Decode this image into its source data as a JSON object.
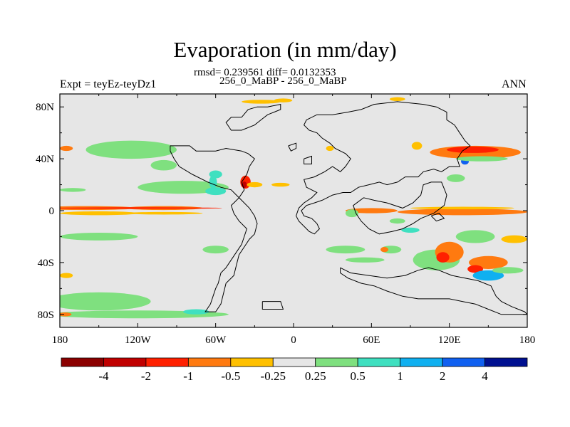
{
  "title": "Evaporation (in mm/day)",
  "stats_line": "rmsd= 0.239561 diff= 0.0132353",
  "case_line": "256_0_MaBP - 256_0_MaBP",
  "left_label": "Expt = teyEz-teyDz1",
  "right_label": "ANN",
  "chart_data": {
    "type": "heatmap",
    "map_projection": "cylindrical-equidistant",
    "background_value_color": "#e6e6e6",
    "xlim": [
      -180,
      180
    ],
    "ylim": [
      -90,
      90
    ],
    "x_ticks": [
      {
        "value": -180,
        "label": "180"
      },
      {
        "value": -120,
        "label": "120W"
      },
      {
        "value": -60,
        "label": "60W"
      },
      {
        "value": 0,
        "label": "0"
      },
      {
        "value": 60,
        "label": "60E"
      },
      {
        "value": 120,
        "label": "120E"
      },
      {
        "value": 180,
        "label": "180"
      }
    ],
    "y_ticks": [
      {
        "value": 80,
        "label": "80N"
      },
      {
        "value": 40,
        "label": "40N"
      },
      {
        "value": 0,
        "label": "0"
      },
      {
        "value": -40,
        "label": "40S"
      },
      {
        "value": -80,
        "label": "80S"
      }
    ],
    "colorbar": {
      "colors": [
        "#8b0000",
        "#c00000",
        "#ff2000",
        "#ff7a10",
        "#ffc000",
        "#e6e6e6",
        "#7fe07f",
        "#3fe0c0",
        "#10b0f0",
        "#1060f0",
        "#001090"
      ],
      "labels": [
        "-4",
        "-2",
        "-1",
        "-0.5",
        "-0.25",
        "0.25",
        "0.5",
        "1",
        "2",
        "4"
      ]
    },
    "coastlines": [
      [
        [
          -40,
          72
        ],
        [
          -35,
          78
        ],
        [
          -28,
          80
        ],
        [
          -20,
          80
        ],
        [
          -10,
          82
        ],
        [
          -10,
          78
        ],
        [
          -20,
          74
        ],
        [
          -25,
          70
        ],
        [
          -30,
          66
        ],
        [
          -40,
          62
        ],
        [
          -48,
          62
        ],
        [
          -52,
          68
        ],
        [
          -48,
          72
        ],
        [
          -40,
          72
        ]
      ],
      [
        [
          -95,
          50
        ],
        [
          -80,
          50
        ],
        [
          -75,
          46
        ],
        [
          -60,
          46
        ],
        [
          -52,
          48
        ],
        [
          -40,
          46
        ],
        [
          -35,
          44
        ],
        [
          -30,
          40
        ],
        [
          -34,
          34
        ],
        [
          -36,
          28
        ],
        [
          -40,
          22
        ],
        [
          -38,
          16
        ],
        [
          -42,
          10
        ],
        [
          -46,
          6
        ],
        [
          -48,
          4
        ],
        [
          -46,
          -2
        ],
        [
          -42,
          -8
        ],
        [
          -36,
          -14
        ],
        [
          -38,
          -20
        ],
        [
          -40,
          -26
        ],
        [
          -44,
          -32
        ],
        [
          -48,
          -38
        ],
        [
          -52,
          -44
        ],
        [
          -56,
          -48
        ],
        [
          -58,
          -56
        ],
        [
          -60,
          -60
        ],
        [
          -62,
          -66
        ],
        [
          -64,
          -72
        ],
        [
          -68,
          -78
        ],
        [
          -60,
          -78
        ],
        [
          -56,
          -72
        ],
        [
          -54,
          -64
        ],
        [
          -52,
          -56
        ],
        [
          -46,
          -50
        ],
        [
          -44,
          -42
        ],
        [
          -42,
          -34
        ],
        [
          -38,
          -28
        ],
        [
          -34,
          -22
        ],
        [
          -30,
          -18
        ],
        [
          -28,
          -10
        ],
        [
          -30,
          -4
        ],
        [
          -34,
          2
        ],
        [
          -40,
          8
        ],
        [
          -44,
          12
        ],
        [
          -48,
          16
        ],
        [
          -56,
          18
        ],
        [
          -66,
          22
        ],
        [
          -78,
          28
        ],
        [
          -88,
          34
        ],
        [
          -92,
          40
        ],
        [
          -95,
          46
        ],
        [
          -95,
          50
        ]
      ],
      [
        [
          -4,
          50
        ],
        [
          2,
          52
        ],
        [
          2,
          48
        ],
        [
          -2,
          46
        ],
        [
          -4,
          50
        ]
      ],
      [
        [
          8,
          40
        ],
        [
          14,
          42
        ],
        [
          14,
          36
        ],
        [
          8,
          36
        ],
        [
          8,
          40
        ]
      ],
      [
        [
          10,
          70
        ],
        [
          18,
          74
        ],
        [
          30,
          74
        ],
        [
          42,
          76
        ],
        [
          52,
          78
        ],
        [
          62,
          82
        ],
        [
          80,
          84
        ],
        [
          100,
          82
        ],
        [
          110,
          80
        ],
        [
          118,
          76
        ],
        [
          118,
          70
        ],
        [
          124,
          66
        ],
        [
          128,
          60
        ],
        [
          132,
          54
        ],
        [
          136,
          50
        ],
        [
          130,
          46
        ],
        [
          126,
          40
        ],
        [
          128,
          34
        ],
        [
          120,
          34
        ],
        [
          114,
          30
        ],
        [
          108,
          32
        ],
        [
          100,
          30
        ],
        [
          96,
          26
        ],
        [
          86,
          26
        ],
        [
          80,
          22
        ],
        [
          72,
          20
        ],
        [
          66,
          22
        ],
        [
          58,
          20
        ],
        [
          50,
          18
        ],
        [
          44,
          14
        ],
        [
          38,
          14
        ],
        [
          30,
          12
        ],
        [
          22,
          8
        ],
        [
          16,
          6
        ],
        [
          10,
          4
        ],
        [
          6,
          0
        ],
        [
          8,
          -4
        ],
        [
          14,
          -6
        ],
        [
          18,
          -10
        ],
        [
          20,
          -14
        ],
        [
          16,
          -18
        ],
        [
          12,
          -16
        ],
        [
          8,
          -12
        ],
        [
          4,
          -8
        ],
        [
          2,
          -4
        ],
        [
          4,
          2
        ],
        [
          8,
          6
        ],
        [
          14,
          10
        ],
        [
          18,
          14
        ],
        [
          14,
          16
        ],
        [
          10,
          18
        ],
        [
          8,
          24
        ],
        [
          16,
          26
        ],
        [
          24,
          30
        ],
        [
          30,
          34
        ],
        [
          36,
          30
        ],
        [
          40,
          34
        ],
        [
          44,
          40
        ],
        [
          40,
          44
        ],
        [
          32,
          48
        ],
        [
          28,
          52
        ],
        [
          22,
          56
        ],
        [
          18,
          60
        ],
        [
          12,
          62
        ],
        [
          8,
          66
        ],
        [
          10,
          70
        ]
      ],
      [
        [
          54,
          10
        ],
        [
          62,
          8
        ],
        [
          72,
          6
        ],
        [
          84,
          2
        ],
        [
          92,
          6
        ],
        [
          98,
          12
        ],
        [
          100,
          20
        ],
        [
          106,
          22
        ],
        [
          114,
          22
        ],
        [
          118,
          12
        ],
        [
          116,
          4
        ],
        [
          108,
          -2
        ],
        [
          98,
          -6
        ],
        [
          92,
          -10
        ],
        [
          84,
          -14
        ],
        [
          76,
          -16
        ],
        [
          66,
          -18
        ],
        [
          58,
          -14
        ],
        [
          52,
          -8
        ],
        [
          48,
          -2
        ],
        [
          46,
          4
        ],
        [
          54,
          10
        ]
      ],
      [
        [
          36,
          -44
        ],
        [
          44,
          -48
        ],
        [
          58,
          -50
        ],
        [
          72,
          -52
        ],
        [
          86,
          -50
        ],
        [
          96,
          -46
        ],
        [
          104,
          -44
        ],
        [
          112,
          -46
        ],
        [
          122,
          -50
        ],
        [
          132,
          -52
        ],
        [
          142,
          -54
        ],
        [
          152,
          -58
        ],
        [
          156,
          -66
        ],
        [
          160,
          -70
        ],
        [
          168,
          -74
        ],
        [
          178,
          -78
        ],
        [
          180,
          -80
        ],
        [
          170,
          -80
        ],
        [
          160,
          -80
        ],
        [
          150,
          -76
        ],
        [
          140,
          -72
        ],
        [
          130,
          -70
        ],
        [
          120,
          -68
        ],
        [
          108,
          -68
        ],
        [
          96,
          -68
        ],
        [
          84,
          -66
        ],
        [
          72,
          -62
        ],
        [
          62,
          -58
        ],
        [
          52,
          -56
        ],
        [
          42,
          -52
        ],
        [
          36,
          -48
        ],
        [
          36,
          -44
        ]
      ],
      [
        [
          -24,
          -70
        ],
        [
          -10,
          -70
        ],
        [
          -8,
          -76
        ],
        [
          -24,
          -76
        ],
        [
          -24,
          -70
        ]
      ],
      [
        [
          106,
          -4
        ],
        [
          110,
          -8
        ],
        [
          116,
          -6
        ],
        [
          112,
          -2
        ],
        [
          106,
          -4
        ]
      ]
    ],
    "anomaly_patches": [
      {
        "lon": -160,
        "lat": 2,
        "w": 80,
        "h": 3,
        "bin": 3
      },
      {
        "lon": -100,
        "lat": 2,
        "w": 60,
        "h": 3,
        "bin": 3
      },
      {
        "lon": -120,
        "lat": 2,
        "w": 130,
        "h": 1.2,
        "bin": 2
      },
      {
        "lon": -150,
        "lat": -2,
        "w": 60,
        "h": 3,
        "bin": 4
      },
      {
        "lon": -100,
        "lat": -2,
        "w": 60,
        "h": 2,
        "bin": 4
      },
      {
        "lon": 60,
        "lat": 0,
        "w": 40,
        "h": 4,
        "bin": 3
      },
      {
        "lon": 130,
        "lat": -1,
        "w": 100,
        "h": 5,
        "bin": 3
      },
      {
        "lon": 130,
        "lat": 2,
        "w": 80,
        "h": 2,
        "bin": 4
      },
      {
        "lon": 140,
        "lat": 45,
        "w": 70,
        "h": 10,
        "bin": 3
      },
      {
        "lon": 138,
        "lat": 47,
        "w": 40,
        "h": 5,
        "bin": 2
      },
      {
        "lon": 132,
        "lat": 38,
        "w": 6,
        "h": 5,
        "bin": 9
      },
      {
        "lon": 145,
        "lat": 40,
        "w": 40,
        "h": 4,
        "bin": 6
      },
      {
        "lon": 110,
        "lat": -38,
        "w": 36,
        "h": 16,
        "bin": 6
      },
      {
        "lon": 120,
        "lat": -32,
        "w": 22,
        "h": 16,
        "bin": 3
      },
      {
        "lon": 115,
        "lat": -36,
        "w": 10,
        "h": 8,
        "bin": 2
      },
      {
        "lon": 150,
        "lat": -40,
        "w": 30,
        "h": 10,
        "bin": 3
      },
      {
        "lon": 140,
        "lat": -45,
        "w": 12,
        "h": 6,
        "bin": 2
      },
      {
        "lon": 150,
        "lat": -50,
        "w": 24,
        "h": 8,
        "bin": 8
      },
      {
        "lon": 165,
        "lat": -46,
        "w": 24,
        "h": 5,
        "bin": 6
      },
      {
        "lon": 140,
        "lat": -20,
        "w": 30,
        "h": 10,
        "bin": 6
      },
      {
        "lon": 170,
        "lat": -22,
        "w": 20,
        "h": 6,
        "bin": 4
      },
      {
        "lon": -125,
        "lat": 47,
        "w": 70,
        "h": 14,
        "bin": 6
      },
      {
        "lon": -100,
        "lat": 35,
        "w": 20,
        "h": 8,
        "bin": 6
      },
      {
        "lon": -85,
        "lat": 18,
        "w": 70,
        "h": 10,
        "bin": 6
      },
      {
        "lon": -60,
        "lat": 15,
        "w": 16,
        "h": 6,
        "bin": 7
      },
      {
        "lon": -60,
        "lat": 28,
        "w": 10,
        "h": 6,
        "bin": 7
      },
      {
        "lon": -62,
        "lat": 22,
        "w": 6,
        "h": 10,
        "bin": 7
      },
      {
        "lon": -37,
        "lat": 22,
        "w": 8,
        "h": 10,
        "bin": 2
      },
      {
        "lon": -38,
        "lat": 20,
        "w": 4,
        "h": 5,
        "bin": 1
      },
      {
        "lon": -30,
        "lat": 20,
        "w": 12,
        "h": 4,
        "bin": 4
      },
      {
        "lon": -10,
        "lat": 20,
        "w": 14,
        "h": 3,
        "bin": 4
      },
      {
        "lon": -150,
        "lat": -20,
        "w": 60,
        "h": 6,
        "bin": 6
      },
      {
        "lon": -60,
        "lat": -30,
        "w": 20,
        "h": 6,
        "bin": 6
      },
      {
        "lon": -150,
        "lat": -70,
        "w": 80,
        "h": 14,
        "bin": 6
      },
      {
        "lon": -120,
        "lat": -80,
        "w": 140,
        "h": 6,
        "bin": 6
      },
      {
        "lon": -75,
        "lat": -78,
        "w": 20,
        "h": 4,
        "bin": 7
      },
      {
        "lon": -176,
        "lat": -80,
        "w": 10,
        "h": 3,
        "bin": 3
      },
      {
        "lon": -175,
        "lat": -50,
        "w": 10,
        "h": 4,
        "bin": 4
      },
      {
        "lon": -175,
        "lat": 48,
        "w": 10,
        "h": 4,
        "bin": 3
      },
      {
        "lon": -170,
        "lat": 16,
        "w": 20,
        "h": 3,
        "bin": 6
      },
      {
        "lon": -25,
        "lat": 84,
        "w": 30,
        "h": 3,
        "bin": 4
      },
      {
        "lon": -8,
        "lat": 85,
        "w": 14,
        "h": 3,
        "bin": 4
      },
      {
        "lon": 80,
        "lat": 86,
        "w": 12,
        "h": 3,
        "bin": 4
      },
      {
        "lon": 95,
        "lat": 50,
        "w": 8,
        "h": 6,
        "bin": 4
      },
      {
        "lon": 28,
        "lat": 48,
        "w": 6,
        "h": 4,
        "bin": 4
      },
      {
        "lon": 40,
        "lat": -30,
        "w": 30,
        "h": 6,
        "bin": 6
      },
      {
        "lon": 75,
        "lat": -30,
        "w": 16,
        "h": 6,
        "bin": 6
      },
      {
        "lon": 90,
        "lat": -15,
        "w": 14,
        "h": 4,
        "bin": 7
      },
      {
        "lon": 80,
        "lat": -8,
        "w": 12,
        "h": 4,
        "bin": 6
      },
      {
        "lon": 45,
        "lat": -2,
        "w": 10,
        "h": 6,
        "bin": 6
      },
      {
        "lon": 70,
        "lat": -30,
        "w": 6,
        "h": 4,
        "bin": 3
      },
      {
        "lon": 125,
        "lat": 25,
        "w": 14,
        "h": 6,
        "bin": 6
      },
      {
        "lon": 100,
        "lat": -35,
        "w": 12,
        "h": 6,
        "bin": 6
      },
      {
        "lon": 55,
        "lat": -38,
        "w": 30,
        "h": 4,
        "bin": 6
      }
    ]
  }
}
